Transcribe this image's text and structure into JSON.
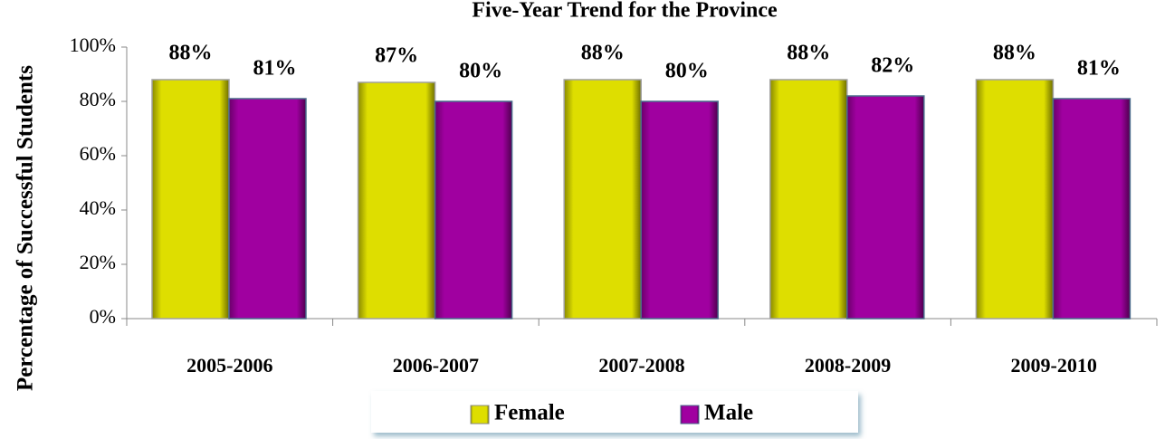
{
  "chart_data": {
    "type": "bar",
    "title": "Five-Year Trend for the Province",
    "y_label": "Percentage of Successful Students",
    "categories": [
      "2005-2006",
      "2006-2007",
      "2007-2008",
      "2008-2009",
      "2009-2010"
    ],
    "series": [
      {
        "name": "Female",
        "color": "#dede00",
        "values": [
          88,
          87,
          88,
          88,
          88
        ],
        "value_labels": [
          "88%",
          "87%",
          "88%",
          "88%",
          "88%"
        ]
      },
      {
        "name": "Male",
        "color": "#a000a0",
        "values": [
          81,
          80,
          80,
          82,
          81
        ],
        "value_labels": [
          "81%",
          "80%",
          "80%",
          "82%",
          "81%"
        ]
      }
    ],
    "ylim": [
      0,
      100
    ],
    "yticks": [
      {
        "value": 0,
        "label": "0%"
      },
      {
        "value": 20,
        "label": "20%"
      },
      {
        "value": 40,
        "label": "40%"
      },
      {
        "value": 60,
        "label": "60%"
      },
      {
        "value": 80,
        "label": "80%"
      },
      {
        "value": 100,
        "label": "100%"
      }
    ],
    "legend": "bottom"
  }
}
